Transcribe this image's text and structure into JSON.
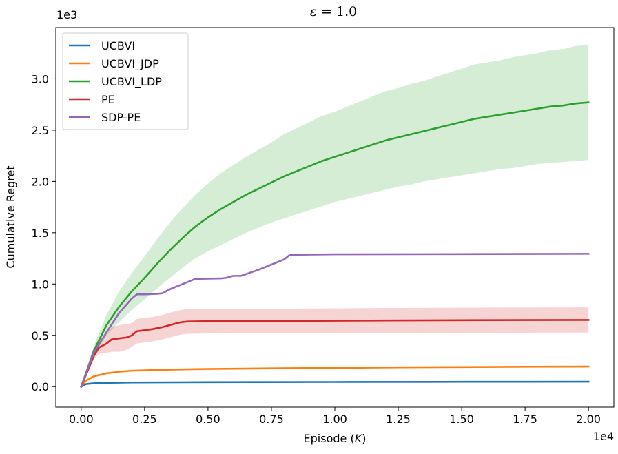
{
  "chart_data": {
    "type": "line",
    "title_italic": "ε",
    "title_rest": " = 1.0",
    "xlabel_prefix": "Episode (",
    "xlabel_var": "K",
    "xlabel_suffix": ")",
    "ylabel": "Cumulative Regret",
    "x_multiplier": "1e4",
    "y_multiplier": "1e3",
    "xlim": [
      -0.1,
      2.1
    ],
    "ylim": [
      -0.2,
      3.5
    ],
    "xticks": [
      0.0,
      0.25,
      0.5,
      0.75,
      1.0,
      1.25,
      1.5,
      1.75,
      2.0
    ],
    "xtick_labels": [
      "0.00",
      "0.25",
      "0.50",
      "0.75",
      "1.00",
      "1.25",
      "1.50",
      "1.75",
      "2.00"
    ],
    "yticks": [
      0.0,
      0.5,
      1.0,
      1.5,
      2.0,
      2.5,
      3.0
    ],
    "ytick_labels": [
      "0.0",
      "0.5",
      "1.0",
      "1.5",
      "2.0",
      "2.5",
      "3.0"
    ],
    "legend_position": "top-left",
    "series": [
      {
        "name": "UCBVI",
        "color": "#1f77b4",
        "x": [
          0,
          0.02,
          0.05,
          0.1,
          0.2,
          0.5,
          1.0,
          1.5,
          2.0
        ],
        "values": [
          0,
          0.025,
          0.032,
          0.036,
          0.04,
          0.043,
          0.045,
          0.047,
          0.048
        ],
        "lower": [
          0,
          0.022,
          0.029,
          0.033,
          0.037,
          0.04,
          0.042,
          0.044,
          0.045
        ],
        "upper": [
          0,
          0.028,
          0.035,
          0.039,
          0.043,
          0.046,
          0.048,
          0.05,
          0.051
        ]
      },
      {
        "name": "UCBVI_JDP",
        "color": "#ff7f0e",
        "x": [
          0,
          0.02,
          0.05,
          0.1,
          0.15,
          0.2,
          0.3,
          0.4,
          0.5,
          0.75,
          1.0,
          1.25,
          1.5,
          1.75,
          2.0
        ],
        "values": [
          0,
          0.06,
          0.1,
          0.13,
          0.145,
          0.155,
          0.163,
          0.168,
          0.172,
          0.178,
          0.183,
          0.188,
          0.191,
          0.194,
          0.196
        ],
        "lower": [
          0,
          0.056,
          0.095,
          0.125,
          0.14,
          0.15,
          0.158,
          0.163,
          0.167,
          0.173,
          0.178,
          0.183,
          0.186,
          0.189,
          0.191
        ],
        "upper": [
          0,
          0.064,
          0.105,
          0.135,
          0.15,
          0.16,
          0.168,
          0.173,
          0.177,
          0.183,
          0.188,
          0.193,
          0.196,
          0.199,
          0.201
        ]
      },
      {
        "name": "UCBVI_LDP",
        "color": "#2ca02c",
        "x": [
          0,
          0.05,
          0.1,
          0.15,
          0.2,
          0.25,
          0.3,
          0.35,
          0.4,
          0.45,
          0.5,
          0.55,
          0.6,
          0.65,
          0.7,
          0.75,
          0.8,
          0.85,
          0.9,
          0.95,
          1.0,
          1.05,
          1.1,
          1.15,
          1.2,
          1.25,
          1.3,
          1.35,
          1.4,
          1.45,
          1.5,
          1.55,
          1.6,
          1.65,
          1.7,
          1.75,
          1.8,
          1.85,
          1.9,
          1.95,
          2.0
        ],
        "values": [
          0,
          0.35,
          0.6,
          0.78,
          0.93,
          1.06,
          1.2,
          1.33,
          1.45,
          1.56,
          1.65,
          1.73,
          1.8,
          1.87,
          1.93,
          1.99,
          2.05,
          2.1,
          2.15,
          2.2,
          2.24,
          2.28,
          2.32,
          2.36,
          2.4,
          2.43,
          2.46,
          2.49,
          2.52,
          2.55,
          2.58,
          2.61,
          2.63,
          2.65,
          2.67,
          2.69,
          2.71,
          2.73,
          2.74,
          2.76,
          2.77
        ],
        "lower": [
          0,
          0.3,
          0.5,
          0.63,
          0.75,
          0.85,
          0.96,
          1.06,
          1.16,
          1.25,
          1.32,
          1.38,
          1.44,
          1.5,
          1.55,
          1.6,
          1.64,
          1.68,
          1.72,
          1.76,
          1.8,
          1.83,
          1.86,
          1.89,
          1.92,
          1.95,
          1.97,
          2.0,
          2.02,
          2.04,
          2.06,
          2.08,
          2.1,
          2.12,
          2.13,
          2.15,
          2.17,
          2.18,
          2.19,
          2.2,
          2.21
        ],
        "upper": [
          0,
          0.4,
          0.7,
          0.93,
          1.11,
          1.27,
          1.44,
          1.6,
          1.74,
          1.87,
          1.98,
          2.08,
          2.16,
          2.24,
          2.31,
          2.38,
          2.46,
          2.52,
          2.58,
          2.64,
          2.68,
          2.73,
          2.78,
          2.83,
          2.88,
          2.91,
          2.95,
          2.98,
          3.02,
          3.06,
          3.1,
          3.14,
          3.16,
          3.18,
          3.21,
          3.23,
          3.25,
          3.28,
          3.29,
          3.32,
          3.33
        ]
      },
      {
        "name": "PE",
        "color": "#d62728",
        "x": [
          0,
          0.05,
          0.07,
          0.1,
          0.12,
          0.15,
          0.18,
          0.2,
          0.22,
          0.25,
          0.28,
          0.3,
          0.32,
          0.35,
          0.38,
          0.4,
          0.42,
          0.5,
          0.8,
          1.2,
          1.6,
          2.0
        ],
        "values": [
          0,
          0.3,
          0.38,
          0.42,
          0.46,
          0.47,
          0.48,
          0.5,
          0.54,
          0.55,
          0.56,
          0.57,
          0.58,
          0.6,
          0.62,
          0.63,
          0.635,
          0.638,
          0.64,
          0.645,
          0.648,
          0.65
        ],
        "lower": [
          0,
          0.27,
          0.32,
          0.33,
          0.34,
          0.34,
          0.36,
          0.39,
          0.42,
          0.43,
          0.44,
          0.45,
          0.46,
          0.48,
          0.5,
          0.51,
          0.515,
          0.518,
          0.52,
          0.523,
          0.525,
          0.527
        ],
        "upper": [
          0,
          0.33,
          0.44,
          0.51,
          0.58,
          0.6,
          0.61,
          0.62,
          0.66,
          0.67,
          0.68,
          0.69,
          0.7,
          0.72,
          0.74,
          0.75,
          0.755,
          0.758,
          0.76,
          0.767,
          0.771,
          0.773
        ]
      },
      {
        "name": "SDP-PE",
        "color": "#9467bd",
        "x": [
          0,
          0.05,
          0.1,
          0.15,
          0.2,
          0.22,
          0.25,
          0.3,
          0.32,
          0.35,
          0.4,
          0.45,
          0.55,
          0.57,
          0.6,
          0.63,
          0.7,
          0.75,
          0.8,
          0.82,
          0.83,
          1.0,
          1.5,
          2.0
        ],
        "values": [
          0,
          0.33,
          0.53,
          0.72,
          0.86,
          0.9,
          0.9,
          0.905,
          0.91,
          0.95,
          1.0,
          1.05,
          1.055,
          1.06,
          1.08,
          1.08,
          1.14,
          1.19,
          1.24,
          1.28,
          1.285,
          1.29,
          1.292,
          1.295
        ]
      }
    ]
  }
}
